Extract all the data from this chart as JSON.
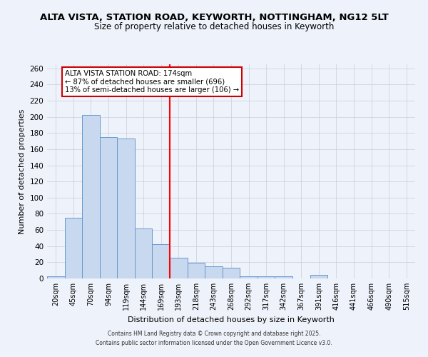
{
  "title": "ALTA VISTA, STATION ROAD, KEYWORTH, NOTTINGHAM, NG12 5LT",
  "subtitle": "Size of property relative to detached houses in Keyworth",
  "xlabel": "Distribution of detached houses by size in Keyworth",
  "ylabel": "Number of detached properties",
  "bar_labels": [
    "20sqm",
    "45sqm",
    "70sqm",
    "94sqm",
    "119sqm",
    "144sqm",
    "169sqm",
    "193sqm",
    "218sqm",
    "243sqm",
    "268sqm",
    "292sqm",
    "317sqm",
    "342sqm",
    "367sqm",
    "391sqm",
    "416sqm",
    "441sqm",
    "466sqm",
    "490sqm",
    "515sqm"
  ],
  "bar_values": [
    3,
    75,
    202,
    175,
    173,
    62,
    42,
    26,
    19,
    15,
    13,
    3,
    3,
    3,
    0,
    4,
    0,
    0,
    0,
    0,
    0
  ],
  "bar_color": "#c8d8ee",
  "bar_edge_color": "#6699cc",
  "red_line_x": 7.0,
  "annotation_title": "ALTA VISTA STATION ROAD: 174sqm",
  "annotation_line1": "← 87% of detached houses are smaller (696)",
  "annotation_line2": "13% of semi-detached houses are larger (106) →",
  "annotation_box_color": "#ffffff",
  "annotation_box_edge": "#cc0000",
  "ylim": [
    0,
    265
  ],
  "yticks": [
    0,
    20,
    40,
    60,
    80,
    100,
    120,
    140,
    160,
    180,
    200,
    220,
    240,
    260
  ],
  "footer1": "Contains HM Land Registry data © Crown copyright and database right 2025.",
  "footer2": "Contains public sector information licensed under the Open Government Licence v3.0.",
  "bg_color": "#eef2fb",
  "grid_color": "#c8cdd8",
  "title_fontsize": 9.5,
  "subtitle_fontsize": 8.5,
  "footer_fontsize": 5.5
}
